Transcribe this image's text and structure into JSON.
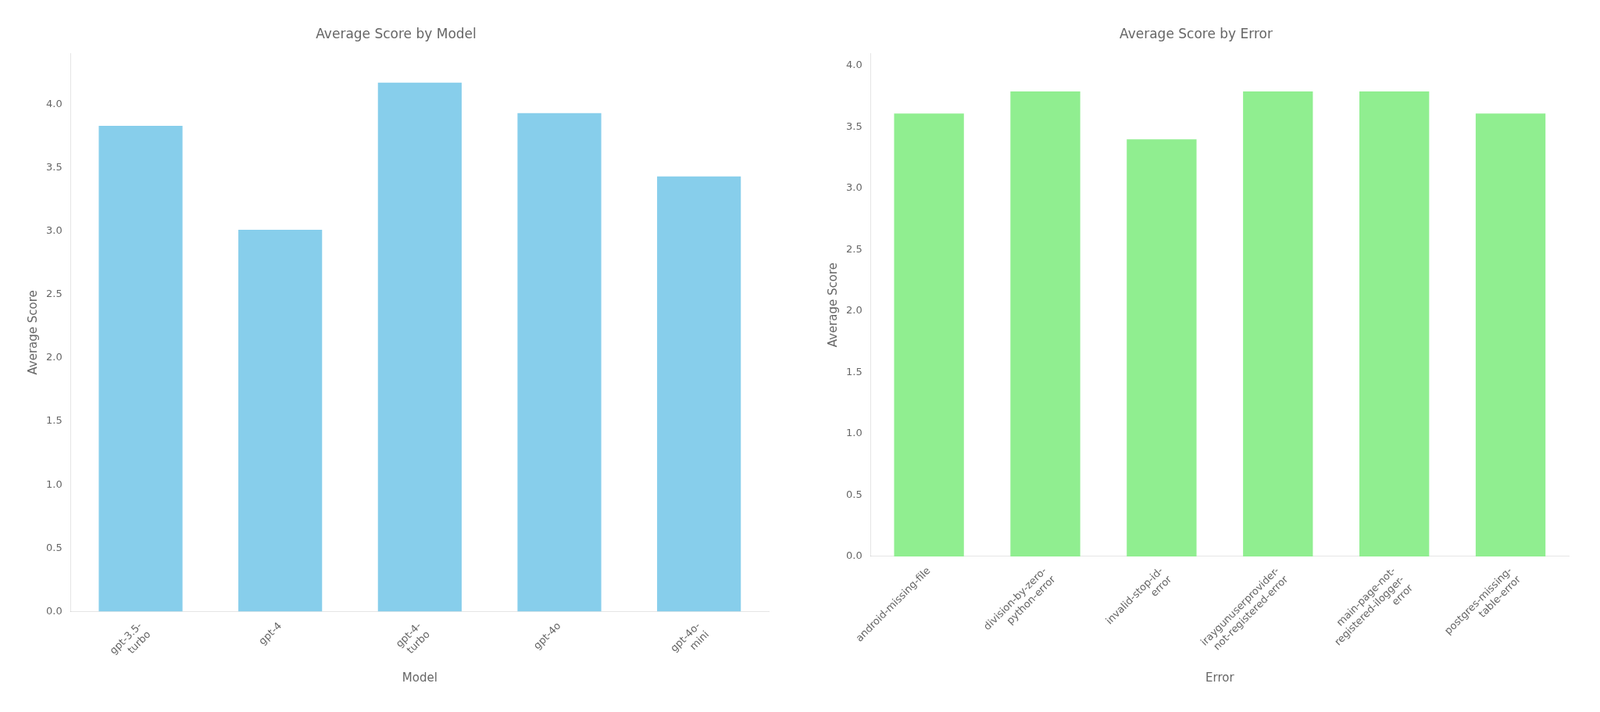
{
  "chart_data": [
    {
      "type": "bar",
      "title": "Average Score by Model",
      "x_label": "Model",
      "y_label": "Average Score",
      "categories": [
        "gpt-3.5-\nturbo",
        "gpt-4",
        "gpt-4-\nturbo",
        "gpt-4o",
        "gpt-4o-\nmini"
      ],
      "values": [
        3.83,
        3.01,
        4.17,
        3.93,
        3.43
      ],
      "color": "#87CEEB",
      "ylim": [
        0,
        4.4
      ],
      "yticks": [
        {
          "value": 0,
          "label": "0.0"
        },
        {
          "value": 0.5,
          "label": "0.5"
        },
        {
          "value": 1,
          "label": "1.0"
        },
        {
          "value": 1.5,
          "label": "1.5"
        },
        {
          "value": 2,
          "label": "2.0"
        },
        {
          "value": 2.5,
          "label": "2.5"
        },
        {
          "value": 3,
          "label": "3.0"
        },
        {
          "value": 3.5,
          "label": "3.5"
        },
        {
          "value": 4,
          "label": "4.0"
        }
      ],
      "grid": false
    },
    {
      "type": "bar",
      "title": "Average Score by Error",
      "x_label": "Error",
      "y_label": "Average Score",
      "categories": [
        "android-missing-file",
        "division-by-zero-\npython-error",
        "invalid-stop-id-\nerror",
        "iraygunuserprovider-\nnot-registered-error",
        "main-page-not-\nregistered-ilogger-\nerror",
        "postgres-missing-\ntable-error"
      ],
      "values": [
        3.61,
        3.79,
        3.4,
        3.79,
        3.79,
        3.61
      ],
      "color": "#90EE90",
      "ylim": [
        0,
        4.1
      ],
      "yticks": [
        {
          "value": 0,
          "label": "0.0"
        },
        {
          "value": 0.5,
          "label": "0.5"
        },
        {
          "value": 1,
          "label": "1.0"
        },
        {
          "value": 1.5,
          "label": "1.5"
        },
        {
          "value": 2,
          "label": "2.0"
        },
        {
          "value": 2.5,
          "label": "2.5"
        },
        {
          "value": 3,
          "label": "3.0"
        },
        {
          "value": 3.5,
          "label": "3.5"
        },
        {
          "value": 4,
          "label": "4.0"
        }
      ],
      "grid": false
    }
  ]
}
